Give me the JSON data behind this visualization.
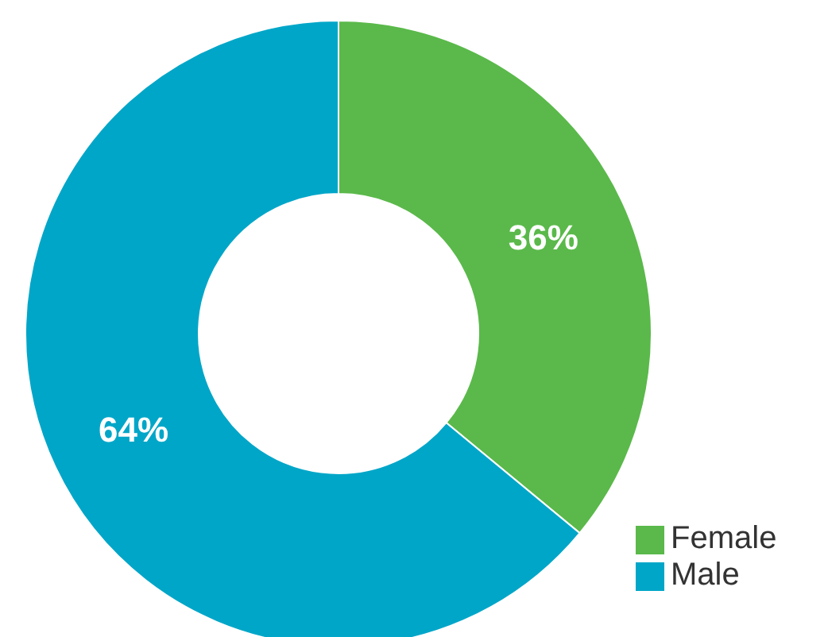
{
  "chart_data": {
    "type": "donut",
    "categories": [
      "Female",
      "Male"
    ],
    "values": [
      36,
      64
    ],
    "colors": [
      "#5ab94a",
      "#00a6c8"
    ],
    "value_labels": [
      "36%",
      "64%"
    ],
    "legend": "bottom right"
  }
}
